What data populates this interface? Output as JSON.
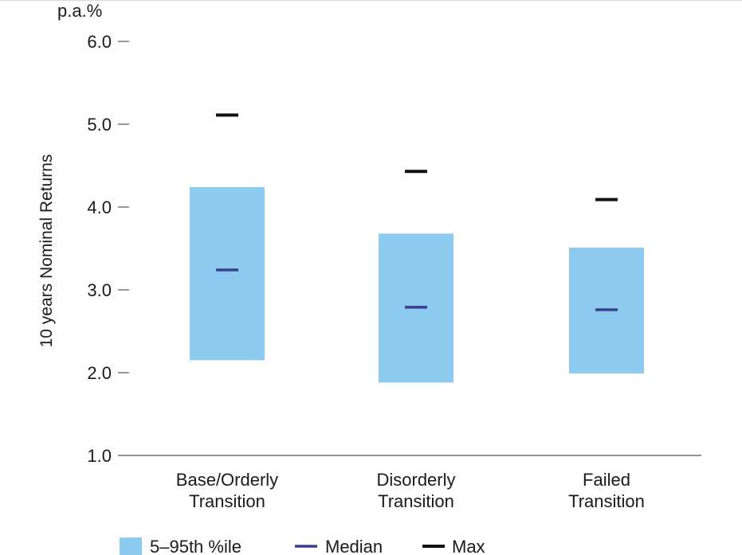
{
  "chart_data": {
    "type": "bar",
    "unit_label": "p.a.%",
    "ylabel": "10 years Nominal Returns",
    "xlabel": "",
    "ylim": [
      1.0,
      6.0
    ],
    "yticks": [
      "6.0",
      "5.0",
      "4.0",
      "3.0",
      "2.0",
      "1.0"
    ],
    "ytick_values": [
      6.0,
      5.0,
      4.0,
      3.0,
      2.0,
      1.0
    ],
    "categories": [
      [
        "Base/Orderly",
        "Transition"
      ],
      [
        "Disorderly",
        "Transition"
      ],
      [
        "Failed",
        "Transition"
      ]
    ],
    "series": [
      {
        "name": "5–95th %ile",
        "kind": "range",
        "low": [
          2.15,
          1.88,
          1.99
        ],
        "high": [
          4.24,
          3.68,
          3.51
        ]
      },
      {
        "name": "Median",
        "kind": "marker",
        "values": [
          3.24,
          2.79,
          2.76
        ]
      },
      {
        "name": "Max",
        "kind": "marker",
        "values": [
          5.11,
          4.43,
          4.09
        ]
      }
    ],
    "colors": {
      "range": "#8ccbef",
      "median": "#3b3f8f",
      "max": "#111111",
      "axis": "#555555"
    },
    "grid": false,
    "legend_position": "bottom-left"
  }
}
